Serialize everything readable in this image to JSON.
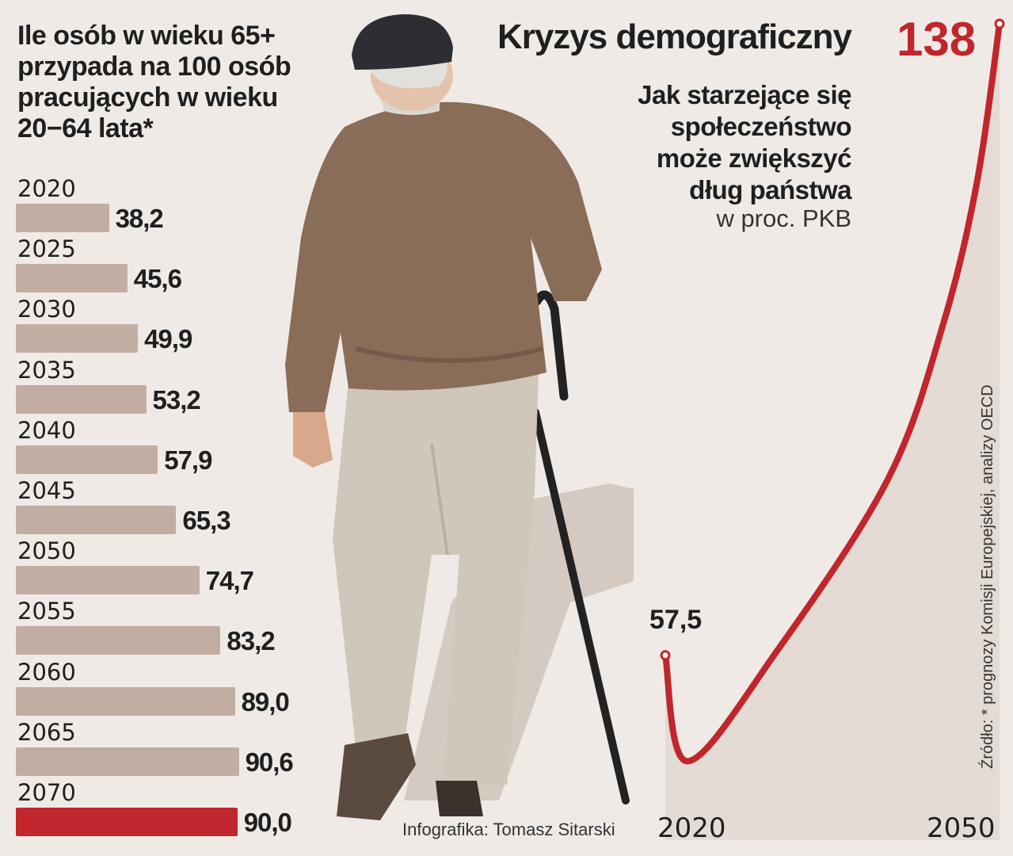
{
  "left_chart": {
    "title_lines": [
      "Ile osób w wieku 65+",
      "przypada na 100 osób",
      "pracujących w wieku",
      "20−64 lata*"
    ]
  },
  "right_chart": {
    "title": "Kryzys demograficzny",
    "subtitle_lines": [
      "Jak starzejące się",
      "społeczeństwo",
      "może zwiększyć",
      "dług państwa"
    ],
    "unit": "w proc. PKB"
  },
  "source": "Źródło: * prognozy Komisji Europejskiej, analizy OECD",
  "credit": "Infografika: Tomasz Sitarski",
  "colors": {
    "bar": "#c2ada3",
    "bar_highlight": "#c0262c",
    "line": "#c0262c",
    "background": "#efeae6"
  },
  "chart_data": [
    {
      "type": "bar",
      "orientation": "horizontal",
      "title": "Ile osób w wieku 65+ przypada na 100 osób pracujących w wieku 20−64 lata*",
      "categories": [
        "2020",
        "2025",
        "2030",
        "2035",
        "2040",
        "2045",
        "2050",
        "2055",
        "2060",
        "2065",
        "2070"
      ],
      "values": [
        38.2,
        45.6,
        49.9,
        53.2,
        57.9,
        65.3,
        74.7,
        83.2,
        89.0,
        90.6,
        90.0
      ],
      "value_labels": [
        "38,2",
        "45,6",
        "49,9",
        "53,2",
        "57,9",
        "65,3",
        "74,7",
        "83,2",
        "89,0",
        "90,6",
        "90,0"
      ],
      "highlight_index": 10
    },
    {
      "type": "line",
      "title": "Kryzys demograficzny",
      "subtitle": "Jak starzejące się społeczeństwo może zwiększyć dług państwa",
      "unit": "w proc. PKB",
      "x": [
        2020,
        2022,
        2030,
        2040,
        2045,
        2048,
        2050
      ],
      "y": [
        57.5,
        44,
        58,
        80,
        100,
        118,
        138
      ],
      "tick_labels": [
        "2020",
        "2050"
      ],
      "labeled_points": [
        {
          "x": 2020,
          "label": "57,5"
        },
        {
          "x": 2050,
          "label": "138"
        }
      ],
      "series": [
        {
          "values": [
            57.5,
            44,
            58,
            80,
            100,
            118,
            138
          ]
        }
      ]
    }
  ]
}
